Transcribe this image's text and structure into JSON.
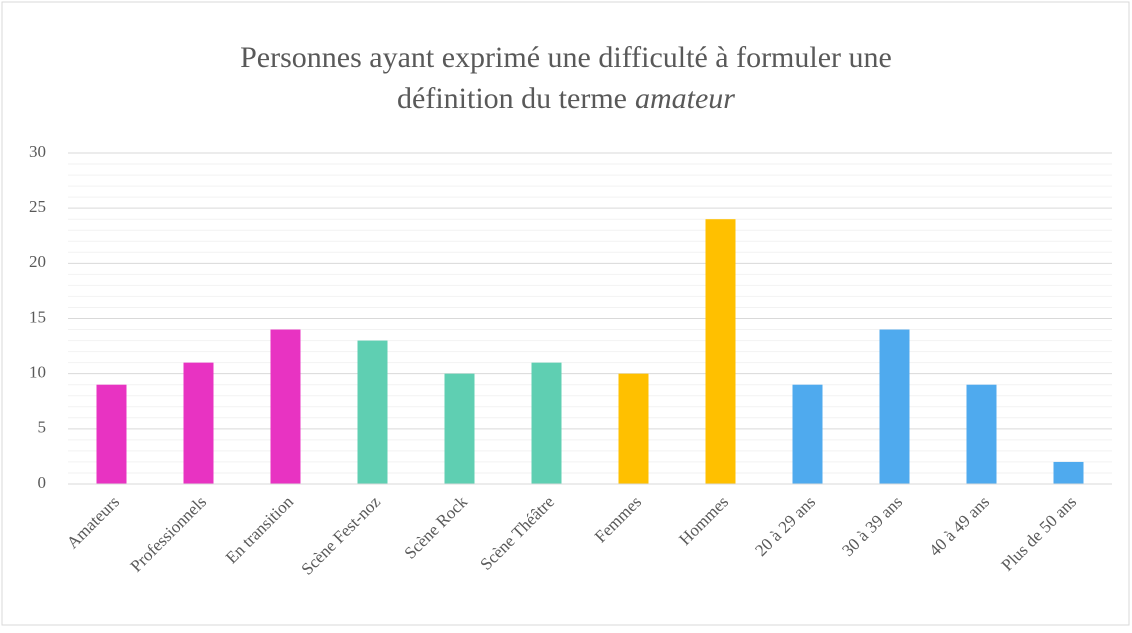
{
  "chart_data": {
    "type": "bar",
    "title": [
      "Personnes ayant exprimé une difficulté à formuler une",
      "définition du terme",
      "amateur"
    ],
    "categories": [
      "Amateurs",
      "Professionnels",
      "En transition",
      "Scène Fest-noz",
      "Scène Rock",
      "Scène Théâtre",
      "Femmes",
      "Hommes",
      "20 à 29 ans",
      "30 à 39 ans",
      "40 à 49 ans",
      "Plus de 50 ans"
    ],
    "values": [
      9,
      11,
      14,
      13,
      10,
      11,
      10,
      24,
      9,
      14,
      9,
      2
    ],
    "colors": [
      "#e833c2",
      "#e833c2",
      "#e833c2",
      "#5fcfb2",
      "#5fcfb2",
      "#5fcfb2",
      "#ffc000",
      "#ffc000",
      "#4faaee",
      "#4faaee",
      "#4faaee",
      "#4faaee"
    ],
    "ylim": [
      0,
      30
    ],
    "yticks": [
      0,
      5,
      10,
      15,
      20,
      25,
      30
    ],
    "minor_yticks": [
      1,
      2,
      3,
      4,
      6,
      7,
      8,
      9,
      11,
      12,
      13,
      14,
      16,
      17,
      18,
      19,
      21,
      22,
      23,
      24,
      26,
      27,
      28,
      29
    ],
    "grid": true,
    "minor_grid": true
  }
}
